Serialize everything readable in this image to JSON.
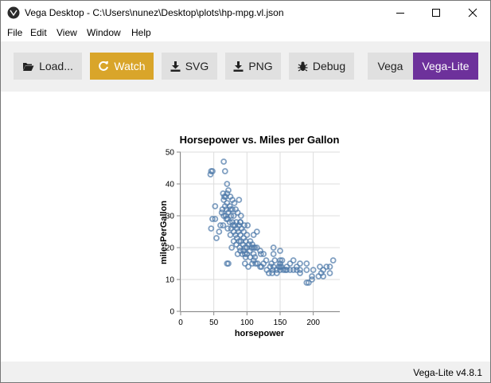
{
  "window": {
    "title": "Vega Desktop - C:\\Users\\nunez\\Desktop\\plots\\hp-mpg.vl.json",
    "icon": "vega-desktop-logo-icon"
  },
  "menu": {
    "items": [
      "File",
      "Edit",
      "View",
      "Window",
      "Help"
    ]
  },
  "toolbar": {
    "load_label": "Load...",
    "watch_label": "Watch",
    "svg_label": "SVG",
    "png_label": "PNG",
    "debug_label": "Debug",
    "vega_label": "Vega",
    "vegalite_label": "Vega-Lite",
    "colors": {
      "watch": "#d9a52a",
      "vegalite": "#6d319b",
      "button": "#e0e0e0"
    }
  },
  "status": {
    "version": "Vega-Lite v4.8.1"
  },
  "chart_data": {
    "type": "scatter",
    "title": "Horsepower vs. Miles per Gallon",
    "xlabel": "horsepower",
    "ylabel": "milesPerGallon",
    "xlim": [
      0,
      240
    ],
    "ylim": [
      0,
      50
    ],
    "x_ticks": [
      0,
      50,
      100,
      150,
      200
    ],
    "y_ticks": [
      0,
      10,
      20,
      30,
      40,
      50
    ],
    "grid": true,
    "mark_color": "#4c78a8",
    "series": [
      {
        "points": [
          [
            45,
            43
          ],
          [
            46,
            44
          ],
          [
            48,
            44
          ],
          [
            46,
            26
          ],
          [
            48,
            29
          ],
          [
            52,
            33
          ],
          [
            52,
            29
          ],
          [
            54,
            23
          ],
          [
            58,
            25
          ],
          [
            60,
            27
          ],
          [
            62,
            31
          ],
          [
            63,
            32
          ],
          [
            64,
            37
          ],
          [
            64,
            27
          ],
          [
            65,
            30
          ],
          [
            65,
            35
          ],
          [
            65,
            47
          ],
          [
            66,
            36
          ],
          [
            67,
            33
          ],
          [
            67,
            44
          ],
          [
            68,
            30
          ],
          [
            68,
            36
          ],
          [
            69,
            29
          ],
          [
            69,
            32
          ],
          [
            70,
            37
          ],
          [
            70,
            34
          ],
          [
            70,
            15
          ],
          [
            70,
            40
          ],
          [
            71,
            29
          ],
          [
            71,
            26
          ],
          [
            72,
            31
          ],
          [
            72,
            38
          ],
          [
            72,
            15
          ],
          [
            74,
            28
          ],
          [
            74,
            33
          ],
          [
            75,
            24
          ],
          [
            75,
            32
          ],
          [
            75,
            36
          ],
          [
            76,
            30
          ],
          [
            76,
            26
          ],
          [
            77,
            20
          ],
          [
            78,
            32
          ],
          [
            78,
            28
          ],
          [
            78,
            35
          ],
          [
            79,
            27
          ],
          [
            80,
            25
          ],
          [
            80,
            30
          ],
          [
            80,
            22
          ],
          [
            81,
            34
          ],
          [
            82,
            27
          ],
          [
            83,
            24
          ],
          [
            83,
            32
          ],
          [
            84,
            21
          ],
          [
            84,
            28
          ],
          [
            85,
            23
          ],
          [
            85,
            26
          ],
          [
            86,
            18
          ],
          [
            86,
            31
          ],
          [
            87,
            25
          ],
          [
            88,
            22
          ],
          [
            88,
            27
          ],
          [
            88,
            35
          ],
          [
            89,
            20
          ],
          [
            90,
            24
          ],
          [
            90,
            28
          ],
          [
            90,
            19
          ],
          [
            91,
            22
          ],
          [
            91,
            30
          ],
          [
            92,
            26
          ],
          [
            93,
            18
          ],
          [
            94,
            21
          ],
          [
            95,
            23
          ],
          [
            95,
            19
          ],
          [
            95,
            25
          ],
          [
            96,
            27
          ],
          [
            97,
            20
          ],
          [
            97,
            15
          ],
          [
            98,
            17
          ],
          [
            98,
            22
          ],
          [
            100,
            24
          ],
          [
            100,
            18
          ],
          [
            100,
            20
          ],
          [
            101,
            27
          ],
          [
            102,
            14
          ],
          [
            103,
            21
          ],
          [
            104,
            19
          ],
          [
            105,
            22
          ],
          [
            105,
            17
          ],
          [
            107,
            20
          ],
          [
            108,
            15
          ],
          [
            108,
            21
          ],
          [
            110,
            18
          ],
          [
            110,
            24
          ],
          [
            110,
            20
          ],
          [
            112,
            17
          ],
          [
            112,
            20
          ],
          [
            113,
            15
          ],
          [
            115,
            25
          ],
          [
            115,
            20
          ],
          [
            116,
            15
          ],
          [
            120,
            19
          ],
          [
            120,
            14
          ],
          [
            121,
            18
          ],
          [
            122,
            14
          ],
          [
            125,
            15
          ],
          [
            125,
            18
          ],
          [
            129,
            16
          ],
          [
            130,
            13
          ],
          [
            133,
            12
          ],
          [
            135,
            14
          ],
          [
            137,
            15
          ],
          [
            138,
            12
          ],
          [
            139,
            13
          ],
          [
            140,
            14
          ],
          [
            140,
            18
          ],
          [
            140,
            20
          ],
          [
            142,
            16
          ],
          [
            145,
            13
          ],
          [
            145,
            12
          ],
          [
            148,
            14
          ],
          [
            150,
            13
          ],
          [
            150,
            15
          ],
          [
            150,
            16
          ],
          [
            150,
            19
          ],
          [
            152,
            14
          ],
          [
            153,
            16
          ],
          [
            155,
            13
          ],
          [
            158,
            13
          ],
          [
            160,
            14
          ],
          [
            165,
            13
          ],
          [
            165,
            15
          ],
          [
            170,
            13
          ],
          [
            170,
            16
          ],
          [
            175,
            13
          ],
          [
            175,
            14
          ],
          [
            180,
            13
          ],
          [
            180,
            15
          ],
          [
            180,
            12
          ],
          [
            190,
            9
          ],
          [
            190,
            15
          ],
          [
            193,
            9
          ],
          [
            198,
            11
          ],
          [
            200,
            13
          ],
          [
            208,
            11
          ],
          [
            210,
            14
          ],
          [
            212,
            12
          ],
          [
            215,
            11
          ],
          [
            215,
            13
          ],
          [
            220,
            14
          ],
          [
            225,
            14
          ],
          [
            225,
            12
          ],
          [
            230,
            16
          ],
          [
            90,
            28
          ],
          [
            97,
            18
          ],
          [
            110,
            16
          ],
          [
            150,
            14
          ],
          [
            160,
            13
          ],
          [
            190,
            13
          ],
          [
            198,
            10
          ]
        ]
      }
    ]
  }
}
